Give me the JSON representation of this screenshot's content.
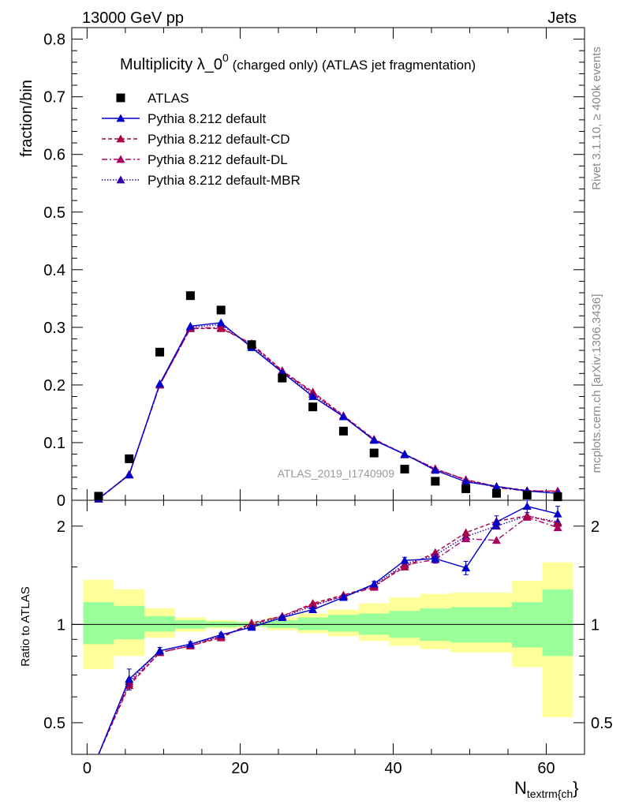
{
  "header": {
    "left": "13000 GeV pp",
    "right": "Jets"
  },
  "side_labels": {
    "top": "Rivet 3.1.10, ≥ 400k events",
    "bottom": "mcplots.cern.ch [arXiv:1306.3436]"
  },
  "main_panel": {
    "title_main": "Multiplicity λ_0",
    "title_sup": "0",
    "title_rest": " (charged only) (ATLAS jet fragmentation)",
    "ylabel": "fraction/bin",
    "watermark": "ATLAS_2019_I1740909",
    "yticks": [
      "0",
      "0.1",
      "0.2",
      "0.3",
      "0.4",
      "0.5",
      "0.6",
      "0.7",
      "0.8"
    ]
  },
  "ratio_panel": {
    "ylabel": "Ratio to ATLAS",
    "yticks_left": [
      "0.5",
      "1",
      "2"
    ],
    "yticks_right": [
      "0.5",
      "1",
      "2"
    ]
  },
  "x_axis": {
    "label_main": "N",
    "label_sub": "textrm{ch",
    "label_tail": "}",
    "ticks": [
      "0",
      "20",
      "40",
      "60"
    ]
  },
  "legend": [
    {
      "label": "ATLAS",
      "color": "#000000",
      "style": "data"
    },
    {
      "label": "Pythia 8.212 default",
      "color": "#0000cc",
      "style": "solid"
    },
    {
      "label": "Pythia 8.212 default-CD",
      "color": "#aa0044",
      "style": "dashed"
    },
    {
      "label": "Pythia 8.212 default-DL",
      "color": "#aa0066",
      "style": "dashdot"
    },
    {
      "label": "Pythia 8.212 default-MBR",
      "color": "#3300aa",
      "style": "dotted"
    }
  ],
  "chart_data": {
    "type": "line",
    "title": "Multiplicity λ_0^0 (charged only) (ATLAS jet fragmentation)",
    "xlabel": "N_textrm{ch}",
    "ylabel": "fraction/bin",
    "xlim": [
      -2,
      65
    ],
    "ylim": [
      0,
      0.82
    ],
    "ratio_ylim": [
      0.4,
      2.4
    ],
    "x": [
      1.5,
      5.5,
      9.5,
      13.5,
      17.5,
      21.5,
      25.5,
      29.5,
      33.5,
      37.5,
      41.5,
      45.5,
      49.5,
      53.5,
      57.5,
      61.5
    ],
    "bin_edges": [
      -0.5,
      3.5,
      7.5,
      11.5,
      15.5,
      19.5,
      23.5,
      27.5,
      31.5,
      35.5,
      39.5,
      43.5,
      47.5,
      51.5,
      55.5,
      59.5,
      63.5
    ],
    "data": {
      "name": "ATLAS",
      "values": [
        0.007,
        0.072,
        0.257,
        0.355,
        0.33,
        0.27,
        0.212,
        0.162,
        0.12,
        0.082,
        0.054,
        0.033,
        0.02,
        0.012,
        0.009,
        0.006
      ],
      "band_inner": [
        [
          0.87,
          1.17
        ],
        [
          0.9,
          1.14
        ],
        [
          0.95,
          1.06
        ],
        [
          0.97,
          1.03
        ],
        [
          0.98,
          1.02
        ],
        [
          0.985,
          1.015
        ],
        [
          0.975,
          1.03
        ],
        [
          0.96,
          1.05
        ],
        [
          0.95,
          1.07
        ],
        [
          0.93,
          1.08
        ],
        [
          0.91,
          1.1
        ],
        [
          0.89,
          1.12
        ],
        [
          0.88,
          1.13
        ],
        [
          0.88,
          1.13
        ],
        [
          0.85,
          1.17
        ],
        [
          0.8,
          1.28
        ]
      ],
      "band_outer": [
        [
          0.73,
          1.37
        ],
        [
          0.8,
          1.28
        ],
        [
          0.91,
          1.12
        ],
        [
          0.95,
          1.05
        ],
        [
          0.97,
          1.03
        ],
        [
          0.98,
          1.02
        ],
        [
          0.96,
          1.05
        ],
        [
          0.94,
          1.08
        ],
        [
          0.92,
          1.11
        ],
        [
          0.89,
          1.16
        ],
        [
          0.86,
          1.21
        ],
        [
          0.84,
          1.24
        ],
        [
          0.82,
          1.25
        ],
        [
          0.82,
          1.25
        ],
        [
          0.74,
          1.36
        ],
        [
          0.52,
          1.55
        ]
      ]
    },
    "series": [
      {
        "name": "Pythia 8.212 default",
        "values": [
          0.0025,
          0.044,
          0.202,
          0.302,
          0.308,
          0.265,
          0.222,
          0.18,
          0.145,
          0.104,
          0.08,
          0.052,
          0.032,
          0.024,
          0.016,
          0.012
        ],
        "ratio": [
          0.35,
          0.68,
          0.83,
          0.87,
          0.93,
          0.98,
          1.05,
          1.11,
          1.21,
          1.33,
          1.57,
          1.59,
          1.49,
          2.06,
          2.3,
          2.18
        ],
        "errors": [
          0.06,
          0.05,
          0.02,
          0.015,
          0.012,
          0.012,
          0.014,
          0.016,
          0.02,
          0.025,
          0.035,
          0.05,
          0.07,
          0.09,
          0.1,
          0.12
        ]
      },
      {
        "name": "Pythia 8.212 default-CD",
        "values": [
          0.0023,
          0.045,
          0.2,
          0.298,
          0.298,
          0.272,
          0.225,
          0.188,
          0.147,
          0.106,
          0.08,
          0.054,
          0.036,
          0.024,
          0.017,
          0.015
        ],
        "ratio": [
          0.33,
          0.65,
          0.82,
          0.86,
          0.91,
          1.01,
          1.06,
          1.16,
          1.23,
          1.31,
          1.5,
          1.66,
          1.91,
          2.07,
          2.15,
          2.04
        ]
      },
      {
        "name": "Pythia 8.212 default-DL",
        "values": [
          0.0023,
          0.044,
          0.2,
          0.298,
          0.3,
          0.27,
          0.224,
          0.186,
          0.146,
          0.105,
          0.08,
          0.055,
          0.035,
          0.022,
          0.016,
          0.016
        ],
        "ratio": [
          0.33,
          0.66,
          0.82,
          0.86,
          0.92,
          1.0,
          1.06,
          1.15,
          1.22,
          1.3,
          1.52,
          1.58,
          1.83,
          1.81,
          2.13,
          1.98
        ]
      },
      {
        "name": "Pythia 8.212 default-MBR",
        "values": [
          0.0025,
          0.045,
          0.202,
          0.3,
          0.305,
          0.268,
          0.222,
          0.184,
          0.145,
          0.105,
          0.079,
          0.054,
          0.035,
          0.024,
          0.016,
          0.016
        ],
        "ratio": [
          0.34,
          0.67,
          0.83,
          0.87,
          0.92,
          0.99,
          1.05,
          1.14,
          1.22,
          1.32,
          1.53,
          1.63,
          1.86,
          2.0,
          2.15,
          2.06
        ]
      }
    ]
  }
}
